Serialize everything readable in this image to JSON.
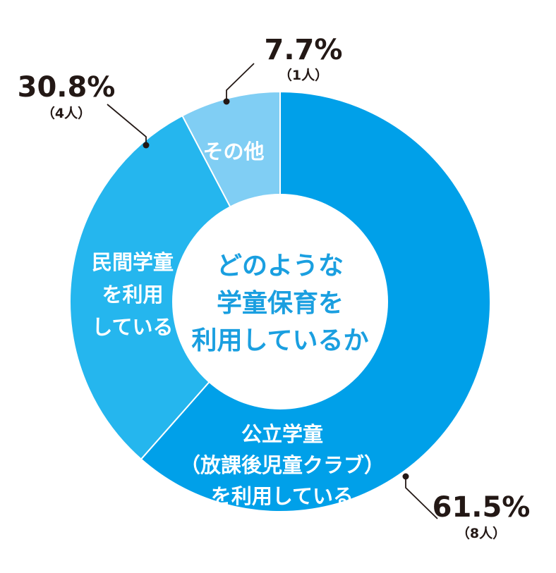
{
  "chart_data": {
    "type": "pie",
    "center_label": [
      "どのような",
      "学童保育を",
      "利用しているか"
    ],
    "slices": [
      {
        "label": [
          "公立学童",
          "（放課後児童クラブ）",
          "を利用している"
        ],
        "value": 61.5,
        "percent_label": "61.5%",
        "count_label": "（8人）",
        "color": "#00a0e9"
      },
      {
        "label": [
          "民間学童",
          "を利用",
          "している"
        ],
        "value": 30.8,
        "percent_label": "30.8%",
        "count_label": "（4人）",
        "color": "#25b6ee"
      },
      {
        "label": [
          "その他"
        ],
        "value": 7.7,
        "percent_label": "7.7%",
        "count_label": "（1人）",
        "color": "#80cef4"
      }
    ]
  }
}
